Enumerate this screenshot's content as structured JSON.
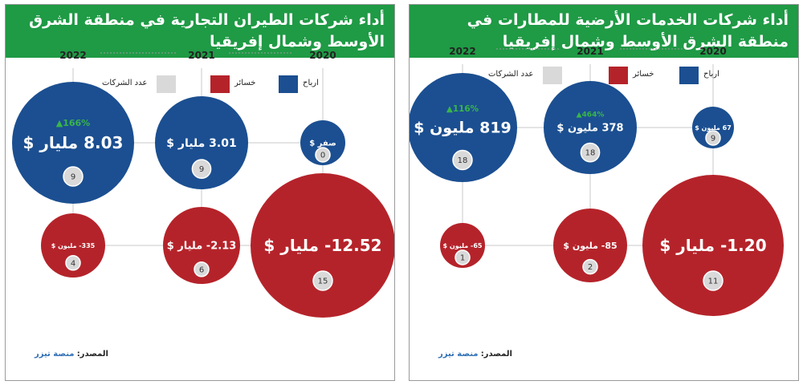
{
  "legend": {
    "profits": "ارباح",
    "losses": "خسائر",
    "companies": "عدد الشركات"
  },
  "colors": {
    "header": "#1f9a45",
    "profit": "#1b4f91",
    "loss": "#b5232a",
    "companies": "#d9d9d9",
    "growth": "#39b54a"
  },
  "source": {
    "label": "المصدر:",
    "value": "منصة تيزر"
  },
  "chart_data": [
    {
      "type": "bubble",
      "title": "أداء شركات الطيران التجارية في منطقة الشرق الأوسط وشمال إفريقيا",
      "years": [
        "2020",
        "2021",
        "2022"
      ],
      "profits": [
        {
          "year": "2020",
          "label": "صفر $",
          "value_usd_billion": 0,
          "companies": "0",
          "growth": ""
        },
        {
          "year": "2021",
          "label": "3.01 مليار $",
          "value_usd_billion": 3.01,
          "companies": "9",
          "growth": ""
        },
        {
          "year": "2022",
          "label": "8.03 مليار $",
          "value_usd_billion": 8.03,
          "companies": "9",
          "growth": "▲166%"
        }
      ],
      "losses": [
        {
          "year": "2020",
          "label": "12.52- مليار $",
          "value_usd_billion": -12.52,
          "companies": "15"
        },
        {
          "year": "2021",
          "label": "2.13- مليار $",
          "value_usd_billion": -2.13,
          "companies": "6"
        },
        {
          "year": "2022",
          "label": "335- مليون $",
          "value_usd_billion": -0.335,
          "companies": "4"
        }
      ]
    },
    {
      "type": "bubble",
      "title": "أداء شركات الخدمات الأرضية للمطارات في منطقة الشرق الأوسط وشمال إفريقيا",
      "years": [
        "2020",
        "2021",
        "2022"
      ],
      "profits": [
        {
          "year": "2020",
          "label": "67 مليون $",
          "value_usd_million": 67,
          "companies": "9",
          "growth": ""
        },
        {
          "year": "2021",
          "label": "378 مليون $",
          "value_usd_million": 378,
          "companies": "18",
          "growth": "▲464%"
        },
        {
          "year": "2022",
          "label": "819 مليون $",
          "value_usd_million": 819,
          "companies": "18",
          "growth": "▲116%"
        }
      ],
      "losses": [
        {
          "year": "2020",
          "label": "1.20- مليار $",
          "value_usd_million": -1200,
          "companies": "11"
        },
        {
          "year": "2021",
          "label": "85- مليون $",
          "value_usd_million": -85,
          "companies": "2"
        },
        {
          "year": "2022",
          "label": "65- مليون $",
          "value_usd_million": -65,
          "companies": "1"
        }
      ]
    }
  ]
}
